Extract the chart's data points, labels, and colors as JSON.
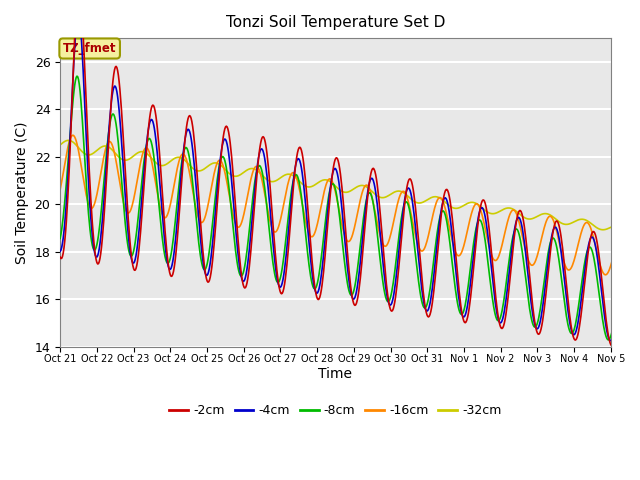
{
  "title": "Tonzi Soil Temperature Set D",
  "xlabel": "Time",
  "ylabel": "Soil Temperature (C)",
  "ylim": [
    14,
    27
  ],
  "background_color": "#e8e8e8",
  "plot_bg_color": "#e8e8e8",
  "grid_color": "white",
  "xtick_labels": [
    "Oct 21",
    "Oct 22",
    "Oct 23",
    "Oct 24",
    "Oct 25",
    "Oct 26",
    "Oct 27",
    "Oct 28",
    "Oct 29",
    "Oct 30",
    "Oct 31",
    "Nov 1",
    "Nov 2",
    "Nov 3",
    "Nov 4",
    "Nov 5"
  ],
  "series_colors": {
    "-2cm": "#cc0000",
    "-4cm": "#0000cc",
    "-8cm": "#00bb00",
    "-16cm": "#ff8800",
    "-32cm": "#cccc00"
  },
  "legend_labels": [
    "-2cm",
    "-4cm",
    "-8cm",
    "-16cm",
    "-32cm"
  ],
  "annotation_text": "TZ_fmet",
  "yticks": [
    14,
    16,
    18,
    20,
    22,
    24,
    26
  ]
}
